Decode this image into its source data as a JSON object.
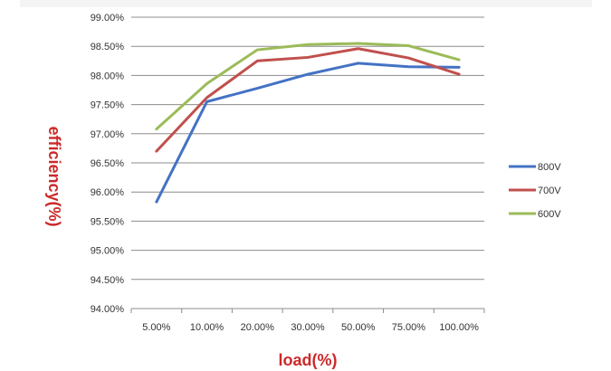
{
  "chart_data": {
    "type": "line",
    "title": "",
    "xlabel": "load(%)",
    "ylabel": "efficiency(%)",
    "categories": [
      "5.00%",
      "10.00%",
      "20.00%",
      "30.00%",
      "50.00%",
      "75.00%",
      "100.00%"
    ],
    "y_ticks": [
      "99.00%",
      "98.50%",
      "98.00%",
      "97.50%",
      "97.00%",
      "96.50%",
      "96.00%",
      "95.50%",
      "95.00%",
      "94.50%",
      "94.00%"
    ],
    "ylim": [
      94.0,
      99.0
    ],
    "grid": true,
    "legend_position": "right",
    "series": [
      {
        "name": "800V",
        "color": "#4472c4",
        "values": [
          95.83,
          97.55,
          97.78,
          98.02,
          98.21,
          98.15,
          98.14
        ]
      },
      {
        "name": "700V",
        "color": "#c0504d",
        "values": [
          96.7,
          97.62,
          98.25,
          98.31,
          98.46,
          98.3,
          98.02
        ]
      },
      {
        "name": "600V",
        "color": "#9bbb59",
        "values": [
          97.08,
          97.86,
          98.44,
          98.53,
          98.55,
          98.51,
          98.27
        ]
      }
    ]
  }
}
